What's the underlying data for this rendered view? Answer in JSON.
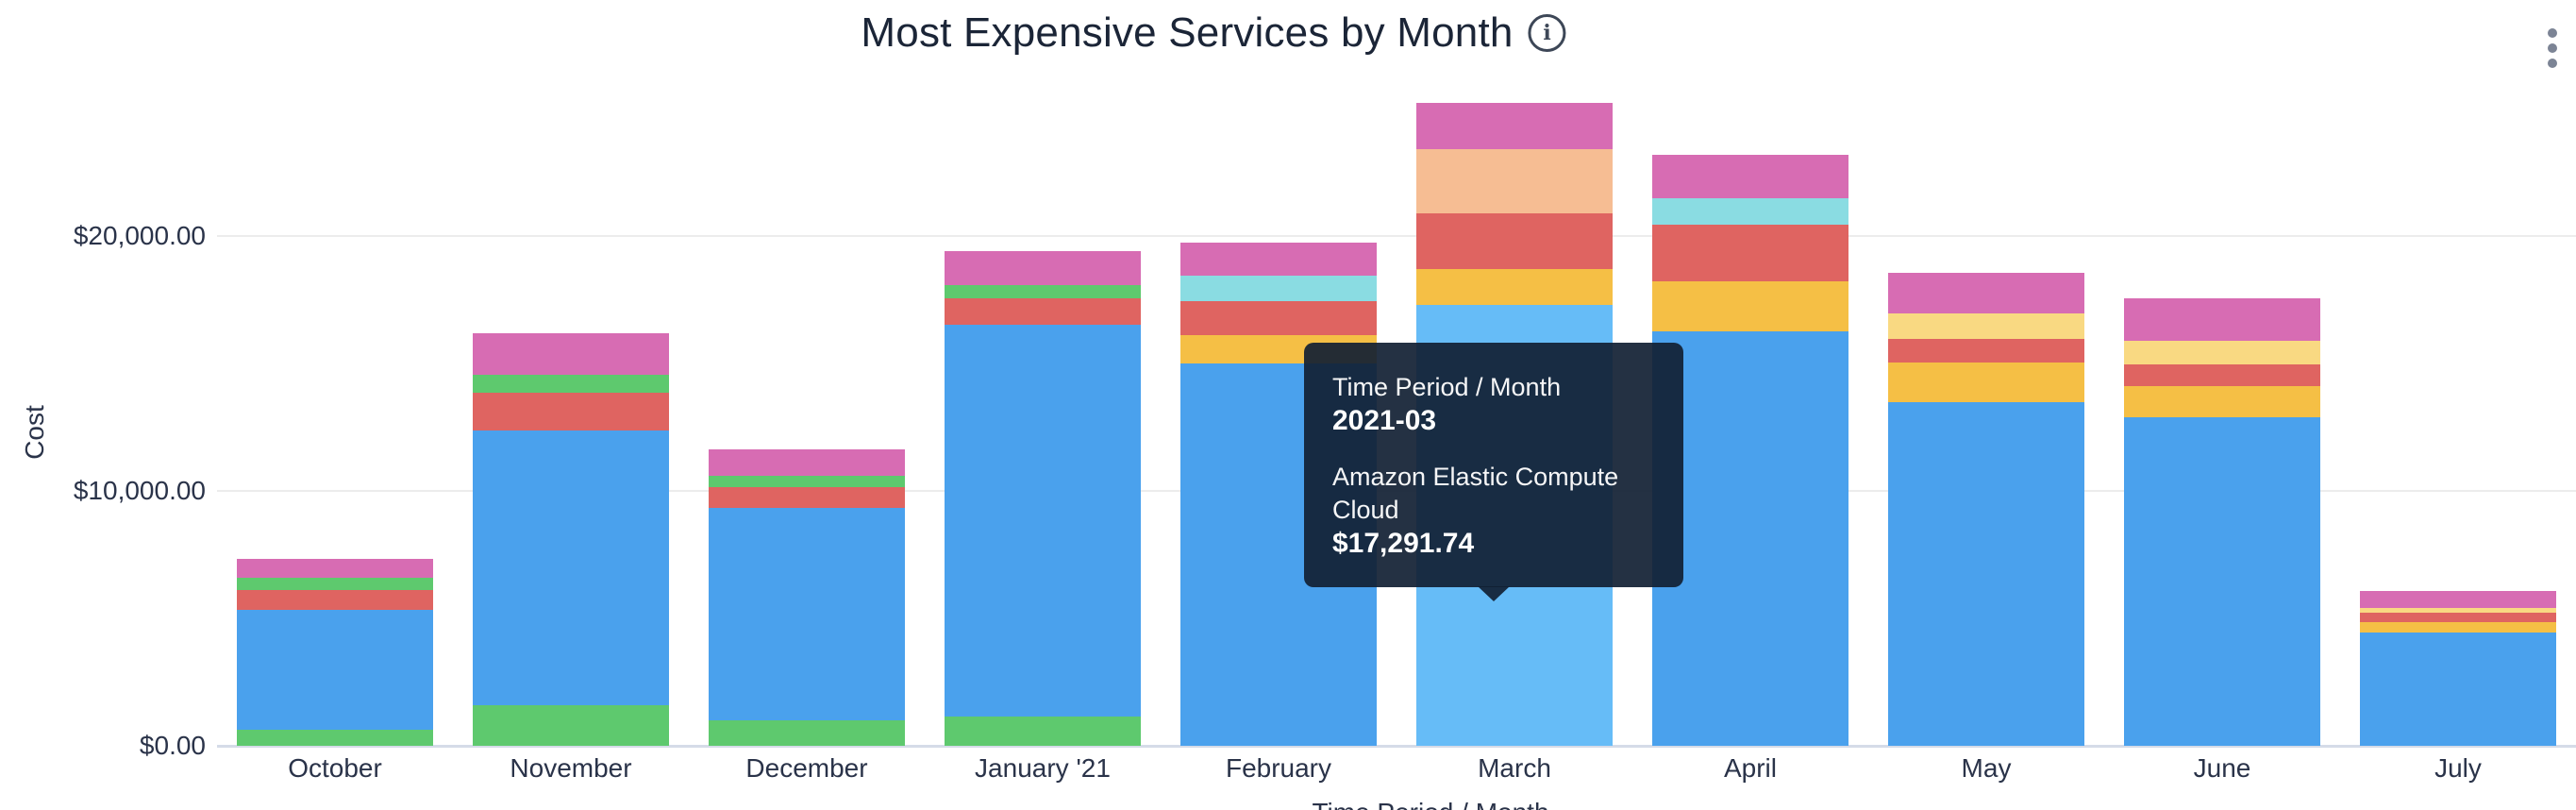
{
  "header": {
    "title": "Most Expensive Services by Month",
    "info_icon": "i",
    "menu_icon": "kebab-vertical-dots"
  },
  "tooltip": {
    "dimension_label": "Time Period / Month",
    "dimension_value": "2021-03",
    "series_label": "Amazon Elastic Compute Cloud",
    "series_value": "$17,291.74",
    "background_color": "rgba(17,32,51,0.92)"
  },
  "chart_data": {
    "type": "bar",
    "subtype": "stacked-vertical",
    "title": "Most Expensive Services by Month",
    "xlabel": "Time Period / Month",
    "ylabel": "Cost",
    "grid": "horizontal",
    "legend": "none",
    "ylim": [
      0,
      27000
    ],
    "y_ticks": [
      {
        "label": "$0.00",
        "value": 0
      },
      {
        "label": "$10,000.00",
        "value": 10000
      },
      {
        "label": "$20,000.00",
        "value": 20000
      }
    ],
    "palette": {
      "blue": "#4aa1ed",
      "blue_highlighted": "#66bcf7",
      "green": "#5ec96e",
      "red": "#df6461",
      "pink": "#d76cb3",
      "cyan": "#8adce2",
      "yellow": "#f5bf45",
      "paleyellow": "#f9d982",
      "peach": "#f6bd93"
    },
    "highlighted_bar": {
      "month": "March",
      "segment_color": "blue",
      "series": "Amazon Elastic Compute Cloud",
      "value": 17291.74
    },
    "categories": [
      "October",
      "November",
      "December",
      "January '21",
      "February",
      "March",
      "April",
      "May",
      "June",
      "July"
    ],
    "bars": [
      {
        "month": "October",
        "total": 7330,
        "segments": [
          {
            "color": "green",
            "value": 630
          },
          {
            "color": "blue",
            "value": 4700
          },
          {
            "color": "red",
            "value": 800
          },
          {
            "color": "green",
            "value": 460
          },
          {
            "color": "pink",
            "value": 740
          }
        ]
      },
      {
        "month": "November",
        "total": 16205,
        "segments": [
          {
            "color": "green",
            "value": 1580
          },
          {
            "color": "blue",
            "value": 10780
          },
          {
            "color": "red",
            "value": 1480
          },
          {
            "color": "green",
            "value": 700
          },
          {
            "color": "pink",
            "value": 1665
          }
        ]
      },
      {
        "month": "December",
        "total": 11615,
        "segments": [
          {
            "color": "green",
            "value": 990
          },
          {
            "color": "blue",
            "value": 8330
          },
          {
            "color": "red",
            "value": 815
          },
          {
            "color": "green",
            "value": 470
          },
          {
            "color": "pink",
            "value": 1010
          }
        ]
      },
      {
        "month": "January '21",
        "total": 19405,
        "segments": [
          {
            "color": "green",
            "value": 1140
          },
          {
            "color": "blue",
            "value": 15390
          },
          {
            "color": "red",
            "value": 1025
          },
          {
            "color": "green",
            "value": 520
          },
          {
            "color": "pink",
            "value": 1330
          }
        ]
      },
      {
        "month": "February",
        "total": 19750,
        "segments": [
          {
            "color": "blue",
            "value": 15000
          },
          {
            "color": "yellow",
            "value": 1110
          },
          {
            "color": "red",
            "value": 1320
          },
          {
            "color": "cyan",
            "value": 1010
          },
          {
            "color": "pink",
            "value": 1310
          }
        ]
      },
      {
        "month": "March",
        "total": 25217,
        "segments": [
          {
            "color": "blue",
            "value": 17291.74,
            "highlighted": true
          },
          {
            "color": "yellow",
            "value": 1420
          },
          {
            "color": "red",
            "value": 2185
          },
          {
            "color": "peach",
            "value": 2530
          },
          {
            "color": "pink",
            "value": 1790
          }
        ]
      },
      {
        "month": "April",
        "total": 23200,
        "segments": [
          {
            "color": "blue",
            "value": 16270
          },
          {
            "color": "yellow",
            "value": 1960
          },
          {
            "color": "red",
            "value": 2220
          },
          {
            "color": "cyan",
            "value": 1050
          },
          {
            "color": "pink",
            "value": 1700
          }
        ]
      },
      {
        "month": "May",
        "total": 18540,
        "segments": [
          {
            "color": "blue",
            "value": 13490
          },
          {
            "color": "yellow",
            "value": 1545
          },
          {
            "color": "red",
            "value": 915
          },
          {
            "color": "paleyellow",
            "value": 1020
          },
          {
            "color": "pink",
            "value": 1570
          }
        ]
      },
      {
        "month": "June",
        "total": 17555,
        "segments": [
          {
            "color": "blue",
            "value": 12900
          },
          {
            "color": "yellow",
            "value": 1210
          },
          {
            "color": "red",
            "value": 840
          },
          {
            "color": "paleyellow",
            "value": 940
          },
          {
            "color": "pink",
            "value": 1665
          }
        ]
      },
      {
        "month": "July",
        "total": 6065,
        "segments": [
          {
            "color": "blue",
            "value": 4440
          },
          {
            "color": "yellow",
            "value": 395
          },
          {
            "color": "red",
            "value": 370
          },
          {
            "color": "paleyellow",
            "value": 220
          },
          {
            "color": "pink",
            "value": 640
          }
        ]
      }
    ]
  }
}
